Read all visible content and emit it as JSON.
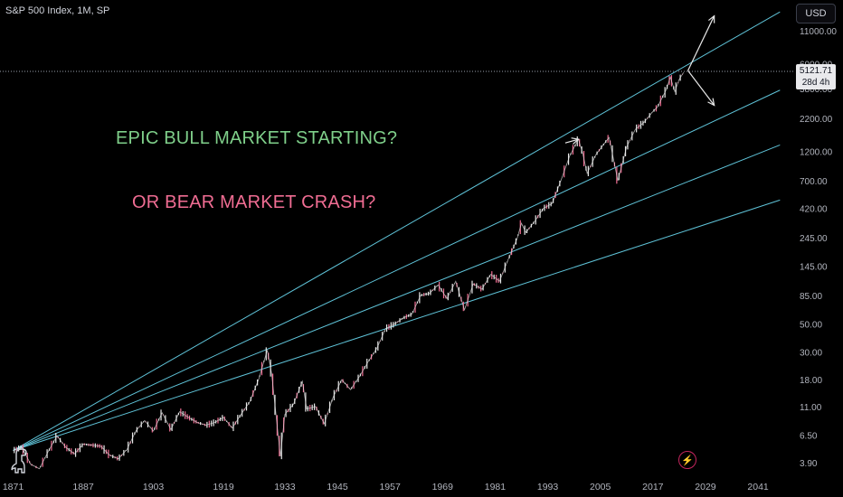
{
  "header": {
    "title": "S&P 500 Index, 1M, SP"
  },
  "toolbar": {
    "currency_label": "USD"
  },
  "price_tag": {
    "price": "5121.71",
    "countdown": "28d 4h"
  },
  "annotations": {
    "bull": "EPIC BULL MARKET STARTING?",
    "bear": "OR BEAR MARKET CRASH?"
  },
  "colors": {
    "background": "#000000",
    "trendline": "#5fc3d8",
    "arrow": "#e8e8e8",
    "up_candle": "#e8e8e8",
    "down_candle": "#f06d93",
    "bull_text": "#7fcf8a",
    "bear_text": "#f06d93"
  },
  "icons": {
    "logo": "dinosaur-icon",
    "alert": "lightning-icon"
  },
  "chart_data": {
    "type": "line",
    "scale": "log",
    "xlim": [
      1868,
      2048
    ],
    "ylim": [
      3.0,
      17000
    ],
    "x_ticks": [
      1871,
      1887,
      1903,
      1919,
      1933,
      1945,
      1957,
      1969,
      1981,
      1993,
      2005,
      2017,
      2029,
      2041
    ],
    "y_ticks": [
      3.9,
      6.5,
      11.0,
      18.0,
      30.0,
      50.0,
      85.0,
      145.0,
      245.0,
      420.0,
      700.0,
      1200.0,
      2200.0,
      3800.0,
      6000.0,
      11000.0
    ],
    "y_tick_labels": [
      "3.90",
      "6.50",
      "11.00",
      "18.00",
      "30.00",
      "50.00",
      "85.00",
      "145.00",
      "245.00",
      "420.00",
      "700.00",
      "1200.00",
      "2200.00",
      "3800.00",
      "6000.00",
      "11000.00"
    ],
    "last_price": 5121.71,
    "series": [
      {
        "values": [
          [
            1871,
            4.9
          ],
          [
            1873,
            5.2
          ],
          [
            1875,
            3.8
          ],
          [
            1877,
            3.5
          ],
          [
            1879,
            4.8
          ],
          [
            1881,
            6.4
          ],
          [
            1883,
            5.2
          ],
          [
            1885,
            4.6
          ],
          [
            1887,
            5.5
          ],
          [
            1889,
            5.4
          ],
          [
            1891,
            5.3
          ],
          [
            1893,
            4.5
          ],
          [
            1895,
            4.2
          ],
          [
            1897,
            5.0
          ],
          [
            1899,
            7.0
          ],
          [
            1901,
            8.5
          ],
          [
            1903,
            7.0
          ],
          [
            1905,
            9.8
          ],
          [
            1907,
            7.2
          ],
          [
            1909,
            10.0
          ],
          [
            1911,
            9.0
          ],
          [
            1913,
            8.2
          ],
          [
            1915,
            7.8
          ],
          [
            1917,
            8.2
          ],
          [
            1919,
            9.0
          ],
          [
            1921,
            7.4
          ],
          [
            1923,
            9.5
          ],
          [
            1925,
            12.0
          ],
          [
            1927,
            18.0
          ],
          [
            1929,
            31.0
          ],
          [
            1930,
            20.0
          ],
          [
            1932,
            4.4
          ],
          [
            1933,
            9.5
          ],
          [
            1935,
            11.5
          ],
          [
            1937,
            17.5
          ],
          [
            1938,
            10.5
          ],
          [
            1940,
            11.0
          ],
          [
            1942,
            8.0
          ],
          [
            1944,
            13.0
          ],
          [
            1946,
            18.0
          ],
          [
            1948,
            15.0
          ],
          [
            1950,
            19.0
          ],
          [
            1952,
            25.0
          ],
          [
            1954,
            32.0
          ],
          [
            1956,
            46.0
          ],
          [
            1958,
            50.0
          ],
          [
            1960,
            56.0
          ],
          [
            1962,
            60.0
          ],
          [
            1964,
            85.0
          ],
          [
            1966,
            88.0
          ],
          [
            1968,
            103.0
          ],
          [
            1970,
            80.0
          ],
          [
            1972,
            110.0
          ],
          [
            1974,
            65.0
          ],
          [
            1976,
            105.0
          ],
          [
            1978,
            95.0
          ],
          [
            1980,
            125.0
          ],
          [
            1982,
            110.0
          ],
          [
            1984,
            165.0
          ],
          [
            1986,
            240.0
          ],
          [
            1987,
            320.0
          ],
          [
            1988,
            270.0
          ],
          [
            1990,
            330.0
          ],
          [
            1992,
            420.0
          ],
          [
            1994,
            460.0
          ],
          [
            1996,
            700.0
          ],
          [
            1998,
            1100.0
          ],
          [
            2000,
            1500.0
          ],
          [
            2001,
            1150.0
          ],
          [
            2002,
            800.0
          ],
          [
            2004,
            1130.0
          ],
          [
            2006,
            1400.0
          ],
          [
            2007,
            1550.0
          ],
          [
            2009,
            700.0
          ],
          [
            2011,
            1300.0
          ],
          [
            2013,
            1800.0
          ],
          [
            2015,
            2050.0
          ],
          [
            2017,
            2500.0
          ],
          [
            2018,
            2700.0
          ],
          [
            2020,
            3700.0
          ],
          [
            2021,
            4700.0
          ],
          [
            2022,
            3600.0
          ],
          [
            2023,
            4500.0
          ],
          [
            2024,
            5121.71
          ]
        ]
      }
    ],
    "trendlines": [
      {
        "from": [
          1871,
          4.9
        ],
        "to": [
          2046,
          15600
        ]
      },
      {
        "from": [
          1871,
          4.9
        ],
        "to": [
          2046,
          3700
        ]
      },
      {
        "from": [
          1871,
          4.9
        ],
        "to": [
          2046,
          1350
        ]
      },
      {
        "from": [
          1871,
          4.9
        ],
        "to": [
          2046,
          490
        ]
      }
    ],
    "arrows": [
      {
        "from": [
          1997,
          1400
        ],
        "to": [
          2000,
          1500
        ]
      },
      {
        "from": [
          2025,
          5300
        ],
        "to": [
          2031,
          14500
        ]
      },
      {
        "from": [
          2025,
          5300
        ],
        "to": [
          2031,
          2800
        ]
      }
    ]
  }
}
